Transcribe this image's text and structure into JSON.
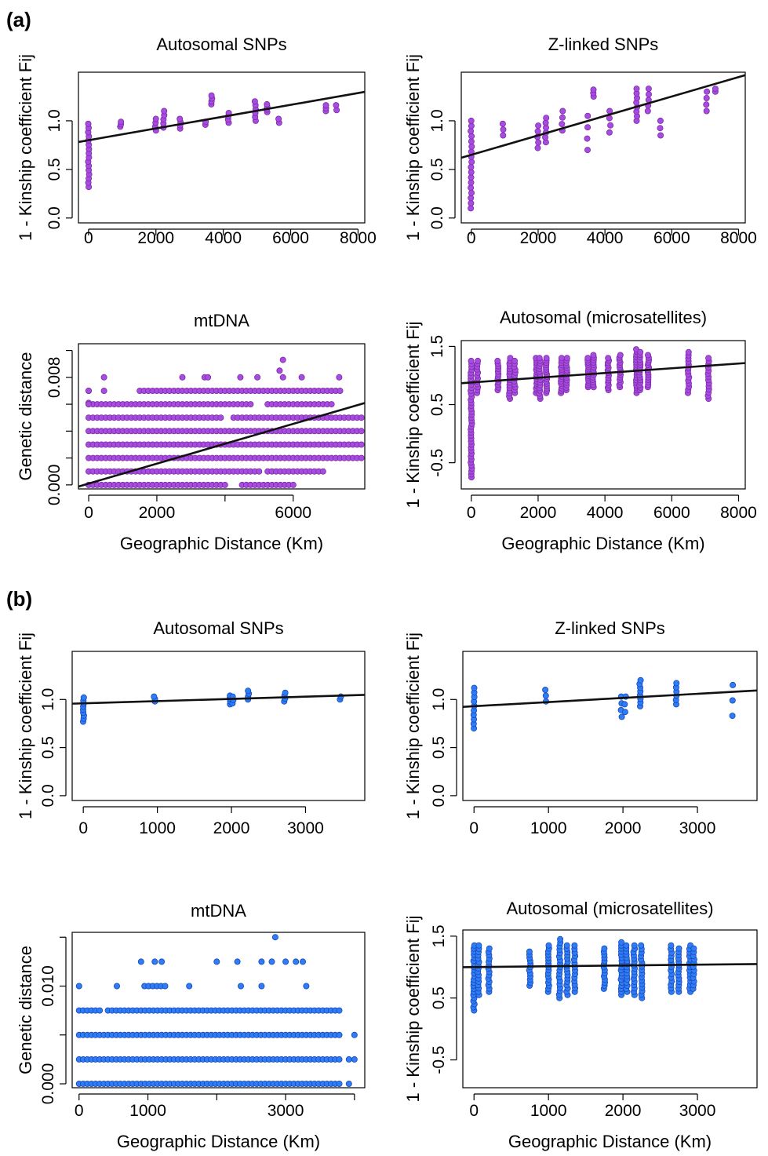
{
  "panels": {
    "a": "(a)",
    "b": "(b)"
  },
  "colors": {
    "purple": "#a64ce0",
    "purple_edge": "#7d2aa6",
    "blue": "#2f7df6",
    "blue_edge": "#1747b8",
    "line": "#111111"
  },
  "chart_data": [
    {
      "panel": "a",
      "type": "scatter",
      "title": "Autosomal SNPs",
      "xlabel": "",
      "ylabel": "1 - Kinship coefficient Fij",
      "xlim": [
        -300,
        8200
      ],
      "ylim": [
        -0.05,
        1.5
      ],
      "xticks": [
        0,
        2000,
        4000,
        6000,
        8000
      ],
      "xtick_labels": [
        "0",
        "2000",
        "4000",
        "6000",
        "8000"
      ],
      "yticks": [
        0.0,
        0.5,
        1.0
      ],
      "ytick_labels": [
        "0.0",
        "0.5",
        "1.0"
      ],
      "point_color": "purple",
      "clusters": [
        {
          "x": 0,
          "ymin": 0.32,
          "ymax": 0.97,
          "n": 16
        },
        {
          "x": 950,
          "ymin": 0.94,
          "ymax": 0.99,
          "n": 3
        },
        {
          "x": 1990,
          "ymin": 0.9,
          "ymax": 1.02,
          "n": 4
        },
        {
          "x": 2230,
          "ymin": 0.93,
          "ymax": 1.1,
          "n": 5
        },
        {
          "x": 2720,
          "ymin": 0.92,
          "ymax": 1.02,
          "n": 4
        },
        {
          "x": 3480,
          "ymin": 0.96,
          "ymax": 0.99,
          "n": 2
        },
        {
          "x": 3650,
          "ymin": 1.17,
          "ymax": 1.26,
          "n": 4
        },
        {
          "x": 4150,
          "ymin": 0.98,
          "ymax": 1.08,
          "n": 4
        },
        {
          "x": 4950,
          "ymin": 1.0,
          "ymax": 1.2,
          "n": 6
        },
        {
          "x": 5300,
          "ymin": 1.09,
          "ymax": 1.17,
          "n": 4
        },
        {
          "x": 5650,
          "ymin": 0.98,
          "ymax": 1.02,
          "n": 2
        },
        {
          "x": 7050,
          "ymin": 1.1,
          "ymax": 1.16,
          "n": 3
        },
        {
          "x": 7350,
          "ymin": 1.11,
          "ymax": 1.16,
          "n": 2
        }
      ],
      "regression": {
        "intercept": 0.8,
        "slope": 6.07e-05
      }
    },
    {
      "panel": "a",
      "type": "scatter",
      "title": "Z-linked SNPs",
      "xlabel": "",
      "ylabel": "1 - Kinship coefficient Fij",
      "xlim": [
        -300,
        8200
      ],
      "ylim": [
        -0.05,
        1.5
      ],
      "xticks": [
        0,
        2000,
        4000,
        6000,
        8000
      ],
      "xtick_labels": [
        "0",
        "2000",
        "4000",
        "6000",
        "8000"
      ],
      "yticks": [
        0.0,
        0.5,
        1.0
      ],
      "ytick_labels": [
        "0.0",
        "0.5",
        "1.0"
      ],
      "point_color": "purple",
      "clusters": [
        {
          "x": 0,
          "ymin": 0.1,
          "ymax": 1.0,
          "n": 18
        },
        {
          "x": 950,
          "ymin": 0.85,
          "ymax": 0.97,
          "n": 3
        },
        {
          "x": 1990,
          "ymin": 0.72,
          "ymax": 0.95,
          "n": 5
        },
        {
          "x": 2230,
          "ymin": 0.78,
          "ymax": 1.03,
          "n": 6
        },
        {
          "x": 2720,
          "ymin": 0.9,
          "ymax": 1.1,
          "n": 4
        },
        {
          "x": 3480,
          "ymin": 0.7,
          "ymax": 1.05,
          "n": 4
        },
        {
          "x": 3650,
          "ymin": 1.25,
          "ymax": 1.32,
          "n": 3
        },
        {
          "x": 4150,
          "ymin": 0.88,
          "ymax": 1.1,
          "n": 4
        },
        {
          "x": 4950,
          "ymin": 1.0,
          "ymax": 1.33,
          "n": 8
        },
        {
          "x": 5300,
          "ymin": 1.1,
          "ymax": 1.33,
          "n": 5
        },
        {
          "x": 5650,
          "ymin": 0.85,
          "ymax": 1.0,
          "n": 3
        },
        {
          "x": 7050,
          "ymin": 1.1,
          "ymax": 1.3,
          "n": 4
        },
        {
          "x": 7300,
          "ymin": 1.3,
          "ymax": 1.33,
          "n": 2
        }
      ],
      "regression": {
        "intercept": 0.65,
        "slope": 0.0001
      }
    },
    {
      "panel": "a",
      "type": "scatter",
      "title": "mtDNA",
      "xlabel": "Geographic Distance (Km)",
      "ylabel": "Genetic distance",
      "xlim": [
        -300,
        8100
      ],
      "ylim": [
        -0.0003,
        0.0105
      ],
      "xticks": [
        0,
        2000,
        4000,
        6000
      ],
      "xtick_labels": [
        "0",
        "2000",
        "",
        "6000"
      ],
      "yticks": [
        0.0,
        0.002,
        0.004,
        0.006,
        0.008,
        0.01
      ],
      "ytick_labels": [
        "0.000",
        "",
        "",
        "",
        "0.008",
        ""
      ],
      "point_color": "purple",
      "levels": [
        {
          "y": 0.0,
          "xmin": 0,
          "xmax": 6000,
          "step": 125,
          "gap": [
            4100,
            4400
          ]
        },
        {
          "y": 0.001,
          "xmin": 0,
          "xmax": 6900,
          "step": 125,
          "gap": [
            5100,
            5250
          ]
        },
        {
          "y": 0.002,
          "xmin": 0,
          "xmax": 8000,
          "step": 125
        },
        {
          "y": 0.003,
          "xmin": 0,
          "xmax": 8000,
          "step": 125
        },
        {
          "y": 0.004,
          "xmin": 0,
          "xmax": 8000,
          "step": 125
        },
        {
          "y": 0.005,
          "xmin": 0,
          "xmax": 8000,
          "step": 125,
          "gap": [
            3950,
            4150
          ]
        },
        {
          "y": 0.006,
          "xmin": 0,
          "xmax": 7200,
          "step": 125,
          "gap": [
            4800,
            5250
          ]
        },
        {
          "y": 0.007,
          "xmin": 0,
          "xmax": 7400,
          "step": 125,
          "gap": [
            100,
            1400
          ]
        },
        {
          "y": 0.0061,
          "xmin": 0,
          "xmax": 0,
          "step": 125
        }
      ],
      "extra_points": [
        [
          0,
          0.006
        ],
        [
          0,
          0.007
        ],
        [
          450,
          0.008
        ],
        [
          450,
          0.007
        ],
        [
          2750,
          0.008
        ],
        [
          3400,
          0.008
        ],
        [
          3500,
          0.008
        ],
        [
          4450,
          0.008
        ],
        [
          4950,
          0.008
        ],
        [
          5600,
          0.0085
        ],
        [
          5700,
          0.008
        ],
        [
          6250,
          0.008
        ],
        [
          7350,
          0.008
        ],
        [
          5700,
          0.0093
        ]
      ],
      "regression": {
        "intercept": 0.0001,
        "slope": 7.4e-07
      }
    },
    {
      "panel": "a",
      "type": "scatter",
      "title": "Autosomal (microsatellites)",
      "xlabel": "Geographic Distance (Km)",
      "ylabel": "1 - Kinship coefficient Fij",
      "xlim": [
        -300,
        8200
      ],
      "ylim": [
        -0.95,
        1.6
      ],
      "xticks": [
        0,
        2000,
        4000,
        6000,
        8000
      ],
      "xtick_labels": [
        "0",
        "2000",
        "4000",
        "6000",
        "8000"
      ],
      "yticks": [
        -0.5,
        0.5,
        1.5
      ],
      "ytick_labels": [
        "-0.5",
        "0.5",
        "1.5"
      ],
      "point_color": "purple",
      "clusters": [
        {
          "x": 0,
          "ymin": -0.75,
          "ymax": 1.25,
          "n": 40
        },
        {
          "x": 180,
          "ymin": 0.7,
          "ymax": 1.25,
          "n": 12
        },
        {
          "x": 800,
          "ymin": 0.75,
          "ymax": 1.25,
          "n": 12
        },
        {
          "x": 1150,
          "ymin": 0.6,
          "ymax": 1.3,
          "n": 16
        },
        {
          "x": 1300,
          "ymin": 0.7,
          "ymax": 1.25,
          "n": 12
        },
        {
          "x": 1950,
          "ymin": 0.7,
          "ymax": 1.3,
          "n": 16
        },
        {
          "x": 2050,
          "ymin": 0.6,
          "ymax": 1.3,
          "n": 16
        },
        {
          "x": 2250,
          "ymin": 0.7,
          "ymax": 1.3,
          "n": 16
        },
        {
          "x": 2700,
          "ymin": 0.7,
          "ymax": 1.3,
          "n": 16
        },
        {
          "x": 2850,
          "ymin": 0.75,
          "ymax": 1.3,
          "n": 14
        },
        {
          "x": 3500,
          "ymin": 0.8,
          "ymax": 1.3,
          "n": 14
        },
        {
          "x": 3650,
          "ymin": 0.8,
          "ymax": 1.35,
          "n": 14
        },
        {
          "x": 4100,
          "ymin": 0.75,
          "ymax": 1.3,
          "n": 14
        },
        {
          "x": 4450,
          "ymin": 0.8,
          "ymax": 1.35,
          "n": 14
        },
        {
          "x": 4950,
          "ymin": 0.7,
          "ymax": 1.45,
          "n": 18
        },
        {
          "x": 5050,
          "ymin": 0.75,
          "ymax": 1.4,
          "n": 16
        },
        {
          "x": 5300,
          "ymin": 0.8,
          "ymax": 1.35,
          "n": 14
        },
        {
          "x": 6500,
          "ymin": 0.7,
          "ymax": 1.4,
          "n": 14
        },
        {
          "x": 7100,
          "ymin": 0.6,
          "ymax": 1.3,
          "n": 14
        }
      ],
      "regression": {
        "intercept": 0.88,
        "slope": 4.07e-05
      }
    },
    {
      "panel": "b",
      "type": "scatter",
      "title": "Autosomal SNPs",
      "xlabel": "",
      "ylabel": "1 - Kinship coefficient Fij",
      "xlim": [
        -150,
        3800
      ],
      "ylim": [
        -0.05,
        1.5
      ],
      "xticks": [
        0,
        1000,
        2000,
        3000
      ],
      "xtick_labels": [
        "0",
        "1000",
        "2000",
        "3000"
      ],
      "yticks": [
        0.0,
        0.5,
        1.0
      ],
      "ytick_labels": [
        "0.0",
        "0.5",
        "1.0"
      ],
      "point_color": "blue",
      "clusters": [
        {
          "x": 0,
          "ymin": 0.77,
          "ymax": 1.02,
          "n": 9
        },
        {
          "x": 960,
          "ymin": 0.98,
          "ymax": 1.03,
          "n": 3
        },
        {
          "x": 1980,
          "ymin": 0.95,
          "ymax": 1.04,
          "n": 4
        },
        {
          "x": 2020,
          "ymin": 0.96,
          "ymax": 1.03,
          "n": 3
        },
        {
          "x": 2230,
          "ymin": 1.0,
          "ymax": 1.09,
          "n": 4
        },
        {
          "x": 2720,
          "ymin": 0.98,
          "ymax": 1.07,
          "n": 4
        },
        {
          "x": 3470,
          "ymin": 1.0,
          "ymax": 1.03,
          "n": 2
        }
      ],
      "regression": {
        "intercept": 0.96,
        "slope": 2.3e-05
      }
    },
    {
      "panel": "b",
      "type": "scatter",
      "title": "Z-linked SNPs",
      "xlabel": "",
      "ylabel": "1 - Kinship coefficient Fij",
      "xlim": [
        -150,
        3800
      ],
      "ylim": [
        -0.05,
        1.5
      ],
      "xticks": [
        0,
        1000,
        2000,
        3000
      ],
      "xtick_labels": [
        "0",
        "1000",
        "2000",
        "3000"
      ],
      "yticks": [
        0.0,
        0.5,
        1.0
      ],
      "ytick_labels": [
        "0.0",
        "0.5",
        "1.0"
      ],
      "point_color": "blue",
      "clusters": [
        {
          "x": 0,
          "ymin": 0.7,
          "ymax": 1.12,
          "n": 10
        },
        {
          "x": 960,
          "ymin": 0.98,
          "ymax": 1.1,
          "n": 3
        },
        {
          "x": 1980,
          "ymin": 0.82,
          "ymax": 1.03,
          "n": 4
        },
        {
          "x": 2030,
          "ymin": 0.87,
          "ymax": 1.03,
          "n": 3
        },
        {
          "x": 2230,
          "ymin": 0.93,
          "ymax": 1.2,
          "n": 8
        },
        {
          "x": 2720,
          "ymin": 0.95,
          "ymax": 1.17,
          "n": 6
        },
        {
          "x": 3470,
          "ymin": 0.83,
          "ymax": 1.15,
          "n": 3
        }
      ],
      "regression": {
        "intercept": 0.93,
        "slope": 4.3e-05
      }
    },
    {
      "panel": "b",
      "type": "scatter",
      "title": "mtDNA",
      "xlabel": "Geographic Distance (Km)",
      "ylabel": "Genetic distance",
      "xlim": [
        -100,
        4150
      ],
      "ylim": [
        -0.0004,
        0.0155
      ],
      "xticks": [
        0,
        1000,
        2000,
        3000,
        4000
      ],
      "xtick_labels": [
        "0",
        "1000",
        "",
        "3000",
        ""
      ],
      "yticks": [
        0.0,
        0.005,
        0.01,
        0.015
      ],
      "ytick_labels": [
        "0.000",
        "",
        "0.010",
        ""
      ],
      "point_color": "blue",
      "levels": [
        {
          "y": 0.0,
          "xmin": 0,
          "xmax": 3800,
          "step": 60
        },
        {
          "y": 0.0025,
          "xmin": 0,
          "xmax": 3800,
          "step": 60
        },
        {
          "y": 0.005,
          "xmin": 0,
          "xmax": 3800,
          "step": 60
        },
        {
          "y": 0.0075,
          "xmin": 0,
          "xmax": 3800,
          "step": 60,
          "gap": [
            300,
            400
          ]
        },
        {
          "y": 0.01,
          "xmin": 950,
          "xmax": 1300,
          "step": 60
        }
      ],
      "extra_points": [
        [
          0,
          0.01
        ],
        [
          900,
          0.0125
        ],
        [
          1100,
          0.0125
        ],
        [
          1200,
          0.0125
        ],
        [
          2000,
          0.0125
        ],
        [
          2300,
          0.0125
        ],
        [
          2650,
          0.0125
        ],
        [
          2800,
          0.0125
        ],
        [
          3150,
          0.0125
        ],
        [
          3250,
          0.0125
        ],
        [
          2850,
          0.015
        ],
        [
          3000,
          0.0125
        ],
        [
          550,
          0.01
        ],
        [
          1600,
          0.01
        ],
        [
          2350,
          0.01
        ],
        [
          2650,
          0.01
        ],
        [
          3300,
          0.01
        ],
        [
          4000,
          0.0025
        ],
        [
          4000,
          0.005
        ],
        [
          3920,
          0.0
        ],
        [
          3920,
          0.0025
        ]
      ],
      "regression": null
    },
    {
      "panel": "b",
      "type": "scatter",
      "title": "Autosomal (microsatellites)",
      "xlabel": "Geographic Distance (Km)",
      "ylabel": "1 - Kinship coefficient Fij",
      "xlim": [
        -150,
        3800
      ],
      "ylim": [
        -0.95,
        1.6
      ],
      "xticks": [
        0,
        1000,
        2000,
        3000
      ],
      "xtick_labels": [
        "0",
        "1000",
        "2000",
        "3000"
      ],
      "yticks": [
        -0.5,
        0.5,
        1.5
      ],
      "ytick_labels": [
        "-0.5",
        "0.5",
        "1.5"
      ],
      "point_color": "blue",
      "clusters": [
        {
          "x": 0,
          "ymin": 0.3,
          "ymax": 1.35,
          "n": 22
        },
        {
          "x": 60,
          "ymin": 0.55,
          "ymax": 1.35,
          "n": 16
        },
        {
          "x": 200,
          "ymin": 0.6,
          "ymax": 1.3,
          "n": 14
        },
        {
          "x": 750,
          "ymin": 0.7,
          "ymax": 1.25,
          "n": 12
        },
        {
          "x": 1000,
          "ymin": 0.6,
          "ymax": 1.35,
          "n": 16
        },
        {
          "x": 1150,
          "ymin": 0.5,
          "ymax": 1.45,
          "n": 18
        },
        {
          "x": 1250,
          "ymin": 0.55,
          "ymax": 1.35,
          "n": 16
        },
        {
          "x": 1350,
          "ymin": 0.6,
          "ymax": 1.35,
          "n": 14
        },
        {
          "x": 1750,
          "ymin": 0.65,
          "ymax": 1.3,
          "n": 14
        },
        {
          "x": 1980,
          "ymin": 0.55,
          "ymax": 1.4,
          "n": 18
        },
        {
          "x": 2050,
          "ymin": 0.6,
          "ymax": 1.35,
          "n": 16
        },
        {
          "x": 2150,
          "ymin": 0.55,
          "ymax": 1.35,
          "n": 16
        },
        {
          "x": 2250,
          "ymin": 0.5,
          "ymax": 1.35,
          "n": 16
        },
        {
          "x": 2650,
          "ymin": 0.6,
          "ymax": 1.35,
          "n": 14
        },
        {
          "x": 2750,
          "ymin": 0.6,
          "ymax": 1.3,
          "n": 14
        },
        {
          "x": 2900,
          "ymin": 0.6,
          "ymax": 1.35,
          "n": 14
        },
        {
          "x": 2950,
          "ymin": 0.65,
          "ymax": 1.3,
          "n": 12
        }
      ],
      "regression": {
        "intercept": 1.0,
        "slope": 1.3e-05
      }
    }
  ]
}
